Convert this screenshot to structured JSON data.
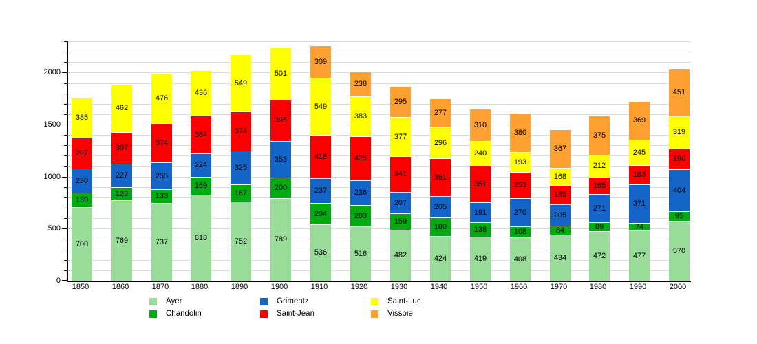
{
  "chart_data": {
    "type": "bar",
    "stacked": true,
    "title": "",
    "xlabel": "",
    "ylabel": "",
    "categories": [
      "1850",
      "1860",
      "1870",
      "1880",
      "1890",
      "1900",
      "1910",
      "1920",
      "1930",
      "1940",
      "1950",
      "1960",
      "1970",
      "1980",
      "1990",
      "2000"
    ],
    "series": [
      {
        "name": "Ayer",
        "color": "#99DB99",
        "values": [
          700,
          769,
          737,
          818,
          752,
          789,
          536,
          516,
          482,
          424,
          419,
          408,
          434,
          472,
          477,
          570
        ]
      },
      {
        "name": "Chandolin",
        "color": "#00AA11",
        "values": [
          139,
          123,
          133,
          169,
          167,
          200,
          204,
          203,
          159,
          180,
          138,
          108,
          84,
          89,
          74,
          95
        ]
      },
      {
        "name": "Grimentz",
        "color": "#1565C8",
        "values": [
          230,
          227,
          255,
          224,
          325,
          353,
          237,
          236,
          207,
          205,
          191,
          270,
          205,
          271,
          371,
          404
        ]
      },
      {
        "name": "Saint-Jean",
        "color": "#FA0000",
        "values": [
          297,
          307,
          374,
          364,
          374,
          395,
          418,
          425,
          341,
          361,
          351,
          253,
          185,
          165,
          183,
          196
        ]
      },
      {
        "name": "Saint-Luc",
        "color": "#FFFF00",
        "values": [
          385,
          462,
          476,
          436,
          549,
          501,
          549,
          383,
          377,
          296,
          240,
          193,
          168,
          212,
          245,
          319
        ]
      },
      {
        "name": "Vissoie",
        "color": "#FFA030",
        "values": [
          null,
          null,
          null,
          null,
          null,
          null,
          309,
          238,
          295,
          277,
          310,
          380,
          367,
          375,
          369,
          451
        ]
      }
    ],
    "y_ticks": [
      0,
      500,
      1000,
      1500,
      2000
    ],
    "ylim": [
      0,
      2300
    ],
    "grid_step": 100,
    "grid": true,
    "legend_position": "bottom",
    "legend_columns": 3,
    "axis_color": "#000000",
    "gridline_color": "#DBDBDB",
    "segment_separator_color": "#FFFFFF"
  }
}
